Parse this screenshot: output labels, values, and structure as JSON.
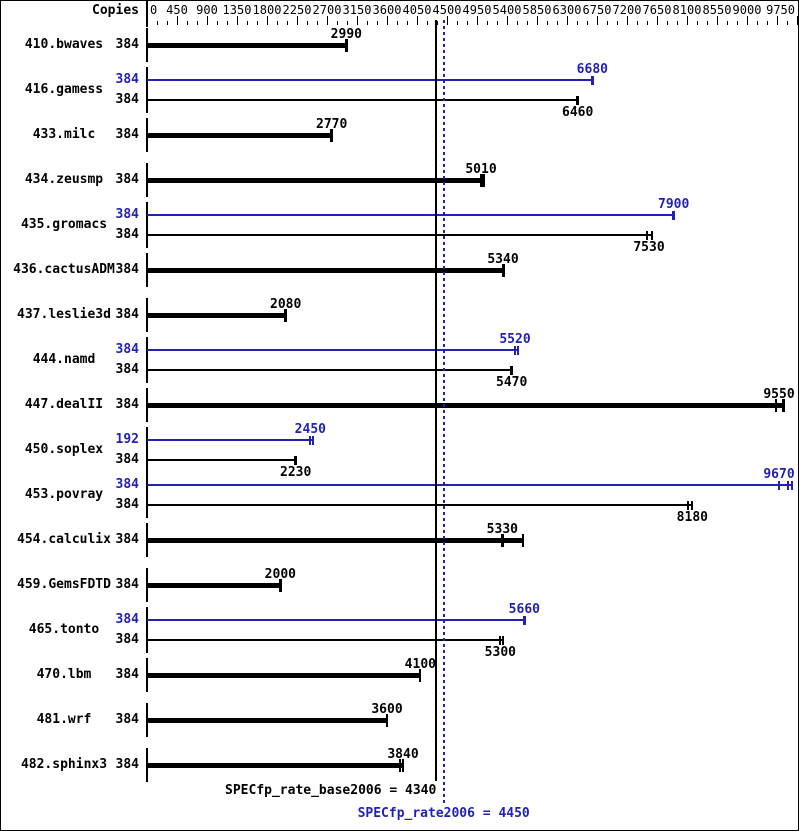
{
  "header": {
    "copies_label": "Copies"
  },
  "footer": {
    "base_label": "SPECfp_rate_base2006 = 4340",
    "peak_label": "SPECfp_rate2006 = 4450"
  },
  "colors": {
    "base": "#000000",
    "peak": "#2222b2",
    "background": "#ffffff",
    "border": "#000000"
  },
  "chart_data": {
    "type": "bar",
    "orientation": "horizontal",
    "copies_column_header": "Copies",
    "axis": {
      "min": 0,
      "max": 9750,
      "major_tick": 450,
      "minor_tick": 150,
      "tick_labels": [
        0,
        450,
        900,
        1350,
        1800,
        2250,
        2700,
        3150,
        3600,
        4050,
        4500,
        4950,
        5400,
        5850,
        6300,
        6750,
        7200,
        7650,
        8100,
        8550,
        9000,
        9750
      ]
    },
    "legend": "none",
    "reference_lines": [
      {
        "id": "base",
        "label": "SPECfp_rate_base2006",
        "value": 4340,
        "style": "solid"
      },
      {
        "id": "peak",
        "label": "SPECfp_rate2006",
        "value": 4450,
        "style": "dotted"
      }
    ],
    "benchmarks": [
      {
        "name": "410.bwaves",
        "bars": [
          {
            "series": "base",
            "copies": 384,
            "value": 2990,
            "marks": [
              {
                "v": 2990,
                "thick": true
              }
            ]
          }
        ]
      },
      {
        "name": "416.gamess",
        "bars": [
          {
            "series": "peak",
            "copies": 384,
            "value": 6680,
            "marks": [
              {
                "v": 6680,
                "thick": true
              }
            ]
          },
          {
            "series": "base",
            "copies": 384,
            "value": 6460,
            "marks": [
              {
                "v": 6460,
                "thick": true
              }
            ]
          }
        ]
      },
      {
        "name": "433.milc",
        "bars": [
          {
            "series": "base",
            "copies": 384,
            "value": 2770,
            "marks": [
              {
                "v": 2770,
                "thick": true
              }
            ]
          }
        ]
      },
      {
        "name": "434.zeusmp",
        "bars": [
          {
            "series": "base",
            "copies": 384,
            "value": 5010,
            "marks": [
              {
                "v": 5010,
                "thick": true
              },
              {
                "v": 5050,
                "thick": false
              }
            ]
          }
        ]
      },
      {
        "name": "435.gromacs",
        "bars": [
          {
            "series": "peak",
            "copies": 384,
            "value": 7900,
            "marks": [
              {
                "v": 7900,
                "thick": true
              }
            ]
          },
          {
            "series": "base",
            "copies": 384,
            "value": 7530,
            "marks": [
              {
                "v": 7500,
                "thick": false
              },
              {
                "v": 7570,
                "thick": false
              }
            ]
          }
        ]
      },
      {
        "name": "436.cactusADM",
        "bars": [
          {
            "series": "base",
            "copies": 384,
            "value": 5340,
            "marks": [
              {
                "v": 5340,
                "thick": true
              }
            ]
          }
        ]
      },
      {
        "name": "437.leslie3d",
        "bars": [
          {
            "series": "base",
            "copies": 384,
            "value": 2080,
            "marks": [
              {
                "v": 2080,
                "thick": true
              }
            ]
          }
        ]
      },
      {
        "name": "444.namd",
        "bars": [
          {
            "series": "peak",
            "copies": 384,
            "value": 5520,
            "marks": [
              {
                "v": 5520,
                "thick": false
              },
              {
                "v": 5570,
                "thick": false
              }
            ]
          },
          {
            "series": "base",
            "copies": 384,
            "value": 5470,
            "marks": [
              {
                "v": 5470,
                "thick": true
              }
            ]
          }
        ]
      },
      {
        "name": "447.dealII",
        "bars": [
          {
            "series": "base",
            "copies": 384,
            "value": 9550,
            "marks": [
              {
                "v": 9430,
                "thick": false
              },
              {
                "v": 9550,
                "thick": true
              }
            ]
          }
        ]
      },
      {
        "name": "450.soplex",
        "bars": [
          {
            "series": "peak",
            "copies": 192,
            "value": 2450,
            "marks": [
              {
                "v": 2450,
                "thick": false
              },
              {
                "v": 2490,
                "thick": false
              }
            ]
          },
          {
            "series": "base",
            "copies": 384,
            "value": 2230,
            "marks": [
              {
                "v": 2230,
                "thick": true
              }
            ]
          }
        ]
      },
      {
        "name": "453.povray",
        "bars": [
          {
            "series": "peak",
            "copies": 384,
            "value": 9670,
            "marks": [
              {
                "v": 9480,
                "thick": false
              },
              {
                "v": 9610,
                "thick": false
              },
              {
                "v": 9670,
                "thick": false
              }
            ]
          },
          {
            "series": "base",
            "copies": 384,
            "value": 8180,
            "marks": [
              {
                "v": 8110,
                "thick": false
              },
              {
                "v": 8180,
                "thick": false
              }
            ]
          }
        ]
      },
      {
        "name": "454.calculix",
        "bars": [
          {
            "series": "base",
            "copies": 384,
            "value": 5330,
            "marks": [
              {
                "v": 5330,
                "thick": true
              },
              {
                "v": 5640,
                "thick": false
              }
            ]
          }
        ]
      },
      {
        "name": "459.GemsFDTD",
        "bars": [
          {
            "series": "base",
            "copies": 384,
            "value": 2000,
            "marks": [
              {
                "v": 2000,
                "thick": true
              }
            ]
          }
        ]
      },
      {
        "name": "465.tonto",
        "bars": [
          {
            "series": "peak",
            "copies": 384,
            "value": 5660,
            "marks": [
              {
                "v": 5660,
                "thick": true
              }
            ]
          },
          {
            "series": "base",
            "copies": 384,
            "value": 5300,
            "marks": [
              {
                "v": 5300,
                "thick": false
              },
              {
                "v": 5340,
                "thick": false
              }
            ]
          }
        ]
      },
      {
        "name": "470.lbm",
        "bars": [
          {
            "series": "base",
            "copies": 384,
            "value": 4100,
            "marks": [
              {
                "v": 4100,
                "thick": false
              }
            ]
          }
        ]
      },
      {
        "name": "481.wrf",
        "bars": [
          {
            "series": "base",
            "copies": 384,
            "value": 3600,
            "marks": [
              {
                "v": 3600,
                "thick": false
              }
            ]
          }
        ]
      },
      {
        "name": "482.sphinx3",
        "bars": [
          {
            "series": "base",
            "copies": 384,
            "value": 3840,
            "marks": [
              {
                "v": 3800,
                "thick": false
              },
              {
                "v": 3840,
                "thick": false
              }
            ]
          }
        ]
      }
    ]
  }
}
